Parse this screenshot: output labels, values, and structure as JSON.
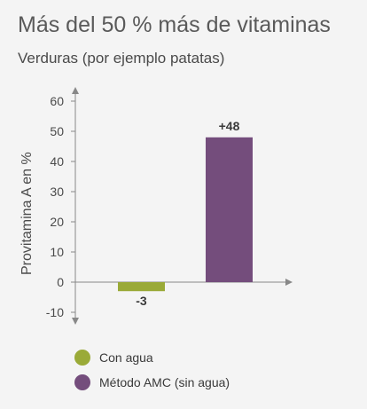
{
  "header": {
    "title": "Más del 50 % más de vitaminas",
    "subtitle": "Verduras (por ejemplo patatas)"
  },
  "chart_data": {
    "type": "bar",
    "title": "Más del 50 % más de vitaminas",
    "subtitle": "Verduras (por ejemplo patatas)",
    "ylabel": "Provitamina A en %",
    "xlabel": "",
    "ylim": [
      -10,
      60
    ],
    "yticks": [
      60,
      50,
      40,
      30,
      20,
      10,
      0,
      -10
    ],
    "categories": [
      "Con agua",
      "Método AMC (sin agua)"
    ],
    "values": [
      -3,
      48
    ],
    "data_labels": [
      "-3",
      "+48"
    ],
    "colors": [
      "#9aaa38",
      "#744d7c"
    ],
    "grid": false,
    "legend": "bottom"
  },
  "legend": [
    {
      "label": "Con agua",
      "color": "#9aaa38"
    },
    {
      "label": "Método AMC (sin agua)",
      "color": "#744d7c"
    }
  ]
}
